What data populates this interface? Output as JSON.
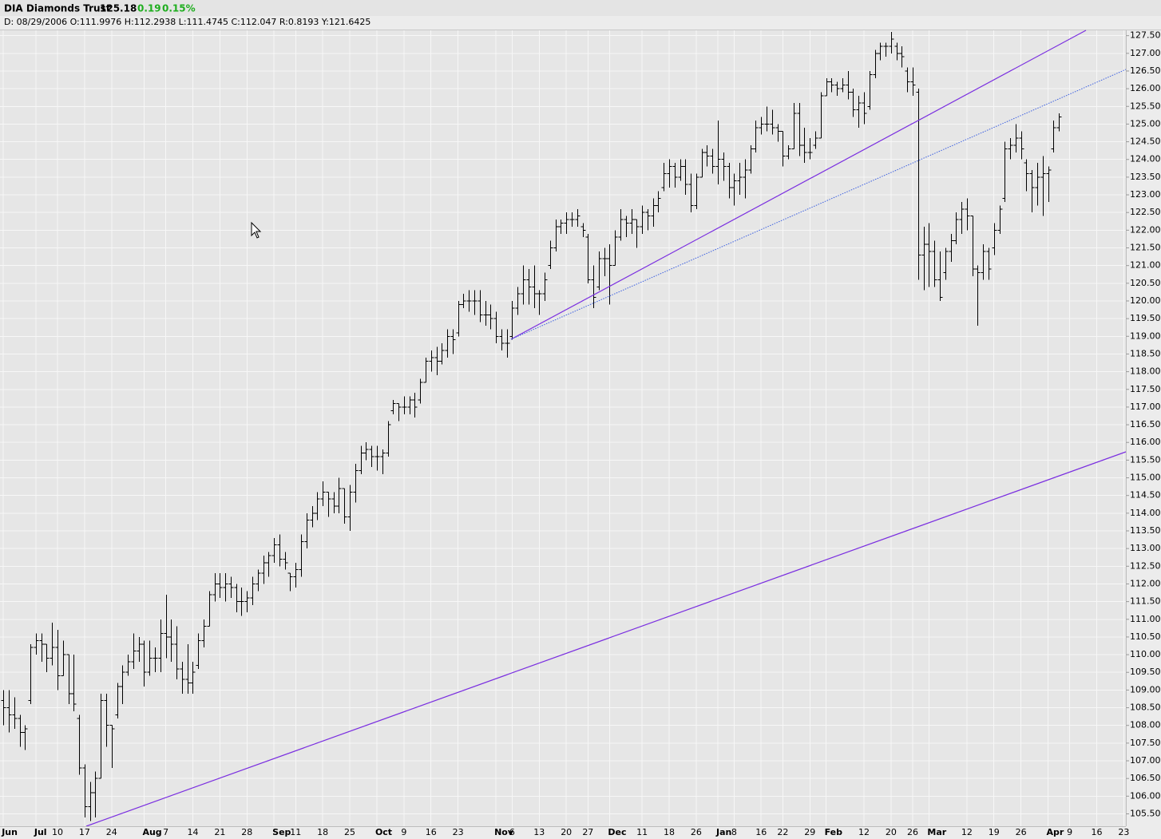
{
  "header": {
    "title": "DIA Diamonds Trust",
    "last": "125.18",
    "change": "0.19",
    "change_pct": "0.15%",
    "info": "D: 08/29/2006 O:111.9976 H:112.2938 L:111.4745 C:112.047 R:0.8193 Y:121.6425"
  },
  "chart_data": {
    "type": "ohlc",
    "bar_color": "#000000",
    "grid": true,
    "categories": [
      "Jun",
      null,
      null,
      null,
      null,
      null,
      "Jul",
      null,
      null,
      null,
      "10",
      null,
      null,
      null,
      null,
      "17",
      null,
      null,
      null,
      null,
      "24",
      null,
      null,
      null,
      null,
      null,
      "Aug",
      null,
      null,
      null,
      "7",
      null,
      null,
      null,
      null,
      "14",
      null,
      null,
      null,
      null,
      "21",
      null,
      null,
      null,
      null,
      "28",
      null,
      null,
      null,
      null,
      "Sep",
      null,
      null,
      null,
      "11",
      null,
      null,
      null,
      null,
      "18",
      null,
      null,
      null,
      null,
      "25",
      null,
      null,
      null,
      null,
      "Oct",
      null,
      null,
      null,
      null,
      "9",
      null,
      null,
      null,
      null,
      "16",
      null,
      null,
      null,
      null,
      "23",
      null,
      null,
      null,
      null,
      null,
      null,
      "Nov",
      null,
      null,
      "6",
      null,
      null,
      null,
      null,
      "13",
      null,
      null,
      null,
      null,
      "20",
      null,
      null,
      null,
      "27",
      null,
      null,
      null,
      "Dec",
      null,
      null,
      null,
      null,
      null,
      "11",
      null,
      null,
      null,
      null,
      "18",
      null,
      null,
      null,
      null,
      "26",
      null,
      null,
      null,
      "Jan",
      null,
      null,
      "8",
      null,
      null,
      null,
      null,
      "16",
      null,
      null,
      null,
      "22",
      null,
      null,
      null,
      null,
      "29",
      null,
      null,
      "Feb",
      null,
      null,
      null,
      null,
      null,
      null,
      "12",
      null,
      null,
      null,
      null,
      "20",
      null,
      null,
      null,
      "26",
      null,
      null,
      "Mar",
      null,
      null,
      null,
      null,
      null,
      null,
      "12",
      null,
      null,
      null,
      null,
      "19",
      null,
      null,
      null,
      null,
      "26",
      null,
      null,
      null,
      null,
      "Apr",
      null,
      null,
      null,
      "9",
      null,
      null,
      null,
      null,
      "16",
      null,
      null,
      null,
      null,
      "23"
    ],
    "open": [
      108.7,
      108.5,
      108.3,
      108.2,
      107.8,
      108.7,
      110.2,
      110.4,
      110.3,
      109.9,
      110.2,
      109.4,
      110.0,
      108.9,
      108.2,
      106.8,
      105.7,
      106.1,
      106.5,
      108.7,
      108.0,
      108.3,
      109.1,
      109.5,
      109.8,
      110.1,
      110.3,
      109.5,
      109.9,
      109.9,
      110.6,
      110.5,
      110.3,
      109.6,
      109.3,
      109.2,
      109.7,
      110.4,
      110.8,
      111.7,
      112.0,
      111.9,
      112.0,
      111.9,
      111.5,
      111.5,
      111.6,
      112.0,
      112.3,
      112.6,
      112.8,
      113.1,
      112.7,
      112.3,
      112.2,
      112.4,
      113.2,
      113.8,
      114.0,
      114.4,
      114.6,
      114.4,
      114.2,
      114.7,
      113.9,
      114.6,
      115.2,
      115.7,
      115.8,
      115.6,
      115.6,
      115.7,
      116.9,
      117.1,
      117.0,
      117.0,
      117.2,
      117.2,
      117.7,
      118.3,
      118.4,
      118.3,
      118.6,
      119.0,
      119.1,
      119.9,
      120.0,
      120.0,
      120.0,
      119.6,
      119.6,
      119.5,
      119.0,
      118.8,
      119.0,
      119.8,
      120.2,
      120.6,
      120.4,
      120.2,
      120.2,
      121.0,
      121.5,
      122.1,
      122.2,
      122.3,
      122.3,
      122.1,
      121.8,
      120.6,
      120.4,
      121.2,
      121.2,
      121.0,
      121.8,
      122.3,
      122.2,
      122.3,
      122.1,
      122.5,
      122.4,
      122.7,
      123.2,
      123.6,
      123.8,
      123.5,
      123.8,
      123.3,
      122.7,
      123.5,
      124.2,
      124.1,
      123.8,
      124.0,
      123.8,
      123.2,
      123.4,
      123.5,
      123.7,
      124.3,
      124.9,
      125.0,
      125.0,
      124.9,
      124.8,
      124.1,
      124.3,
      125.3,
      124.4,
      124.2,
      124.4,
      124.6,
      125.8,
      126.2,
      126.1,
      126.0,
      126.1,
      125.9,
      125.4,
      125.6,
      125.5,
      126.4,
      127.0,
      127.2,
      127.2,
      127.2,
      127.0,
      126.5,
      126.2,
      125.9,
      121.3,
      121.6,
      121.4,
      120.6,
      120.8,
      121.4,
      121.7,
      122.3,
      122.6,
      122.4,
      120.9,
      120.8,
      121.4,
      121.5,
      122.0,
      122.9,
      124.3,
      124.4,
      124.6,
      123.9,
      123.6,
      123.2,
      123.5,
      123.6,
      124.3,
      124.9,
      null,
      null,
      null,
      null,
      null,
      null,
      null,
      null,
      null,
      null,
      null,
      null
    ],
    "high": [
      109.0,
      109.0,
      108.8,
      108.3,
      108.0,
      110.3,
      110.6,
      110.6,
      110.3,
      110.9,
      110.7,
      110.4,
      110.0,
      110.0,
      108.3,
      106.9,
      106.4,
      106.7,
      108.9,
      108.9,
      108.0,
      109.2,
      109.7,
      110.0,
      110.6,
      110.5,
      110.4,
      110.4,
      110.2,
      111.0,
      111.7,
      111.0,
      110.8,
      109.8,
      110.3,
      109.8,
      110.6,
      111.0,
      111.8,
      112.3,
      112.3,
      112.3,
      112.2,
      112.0,
      111.9,
      111.8,
      112.2,
      112.4,
      112.8,
      112.9,
      113.3,
      113.4,
      112.9,
      112.3,
      112.6,
      113.4,
      114.0,
      114.2,
      114.6,
      114.9,
      114.6,
      114.6,
      115.0,
      114.7,
      114.8,
      115.4,
      115.9,
      116.0,
      115.9,
      115.9,
      115.8,
      116.6,
      117.2,
      117.1,
      117.3,
      117.3,
      117.4,
      117.8,
      118.4,
      118.6,
      118.7,
      118.8,
      119.2,
      119.2,
      120.0,
      120.2,
      120.3,
      120.3,
      120.3,
      120.0,
      119.9,
      119.7,
      119.2,
      119.2,
      120.0,
      120.4,
      121.0,
      120.9,
      121.0,
      120.3,
      120.8,
      121.7,
      122.3,
      122.3,
      122.5,
      122.5,
      122.6,
      122.2,
      121.9,
      121.0,
      121.4,
      121.5,
      121.6,
      122.0,
      122.6,
      122.4,
      122.6,
      122.3,
      122.7,
      122.6,
      122.9,
      123.1,
      123.9,
      124.0,
      123.9,
      124.0,
      124.0,
      123.6,
      123.6,
      124.3,
      124.4,
      124.3,
      125.1,
      124.2,
      123.9,
      123.6,
      123.9,
      124.0,
      124.4,
      125.1,
      125.2,
      125.5,
      125.4,
      125.0,
      124.8,
      124.4,
      125.6,
      125.6,
      124.9,
      124.6,
      124.8,
      125.9,
      126.3,
      126.3,
      126.2,
      126.3,
      126.5,
      126.0,
      125.8,
      125.9,
      126.5,
      127.1,
      127.3,
      127.3,
      127.6,
      127.3,
      127.2,
      126.6,
      126.6,
      126.0,
      122.1,
      122.2,
      121.7,
      121.4,
      121.5,
      121.9,
      122.5,
      122.8,
      122.9,
      122.4,
      121.0,
      121.6,
      121.5,
      122.2,
      122.7,
      124.5,
      124.6,
      125.0,
      124.8,
      124.0,
      123.7,
      123.9,
      124.1,
      123.8,
      125.1,
      125.3,
      null,
      null,
      null,
      null,
      null,
      null,
      null,
      null,
      null,
      null,
      null,
      null
    ],
    "low": [
      108.0,
      107.8,
      107.9,
      107.4,
      107.3,
      108.6,
      110.0,
      109.8,
      109.5,
      109.7,
      109.0,
      109.4,
      108.6,
      108.4,
      106.6,
      105.4,
      105.3,
      105.4,
      106.5,
      107.4,
      106.8,
      108.2,
      108.6,
      109.4,
      109.6,
      109.8,
      109.1,
      109.4,
      109.5,
      109.5,
      109.9,
      109.8,
      109.3,
      108.9,
      108.9,
      108.9,
      109.6,
      110.2,
      110.8,
      111.5,
      111.6,
      111.5,
      111.6,
      111.2,
      111.1,
      111.2,
      111.4,
      111.8,
      112.0,
      112.2,
      112.6,
      112.5,
      112.4,
      111.8,
      111.9,
      112.2,
      113.0,
      113.6,
      113.8,
      114.2,
      113.9,
      114.0,
      114.0,
      113.7,
      113.5,
      114.3,
      115.1,
      115.5,
      115.3,
      115.2,
      115.1,
      115.6,
      116.8,
      116.6,
      116.8,
      116.8,
      116.7,
      117.1,
      117.7,
      118.0,
      117.9,
      118.2,
      118.4,
      118.5,
      119.0,
      119.8,
      119.7,
      119.6,
      119.4,
      119.3,
      119.2,
      118.8,
      118.6,
      118.4,
      118.9,
      119.6,
      119.9,
      119.9,
      119.8,
      119.6,
      120.0,
      120.9,
      121.4,
      121.9,
      121.9,
      122.1,
      122.1,
      121.8,
      120.5,
      119.8,
      120.3,
      120.7,
      119.9,
      121.0,
      121.7,
      121.8,
      121.9,
      121.5,
      121.9,
      122.0,
      122.1,
      122.5,
      123.1,
      123.2,
      123.2,
      123.4,
      123.0,
      122.5,
      122.6,
      123.5,
      123.8,
      123.6,
      123.3,
      123.4,
      122.9,
      122.7,
      123.0,
      122.9,
      123.6,
      124.2,
      124.7,
      124.8,
      124.7,
      124.5,
      123.8,
      124.0,
      124.3,
      124.1,
      123.9,
      124.0,
      124.3,
      124.6,
      125.8,
      125.9,
      125.8,
      125.9,
      125.7,
      125.2,
      124.9,
      125.0,
      125.4,
      126.3,
      126.8,
      126.9,
      127.0,
      126.8,
      126.6,
      125.9,
      125.8,
      120.6,
      120.3,
      120.4,
      120.4,
      120.0,
      120.6,
      121.1,
      121.6,
      121.9,
      122.0,
      120.7,
      119.3,
      120.6,
      120.6,
      121.3,
      121.9,
      122.8,
      124.0,
      124.2,
      124.0,
      123.1,
      122.5,
      122.7,
      122.4,
      122.8,
      124.2,
      124.8,
      null,
      null,
      null,
      null,
      null,
      null,
      null,
      null,
      null,
      null,
      null,
      null
    ],
    "close": [
      108.5,
      108.3,
      108.2,
      107.8,
      107.9,
      110.2,
      110.4,
      110.3,
      109.9,
      110.2,
      109.4,
      110.0,
      108.9,
      108.6,
      106.8,
      105.7,
      106.1,
      106.5,
      108.7,
      108.0,
      107.9,
      109.1,
      109.5,
      109.8,
      110.1,
      110.3,
      109.5,
      109.9,
      109.9,
      110.6,
      110.5,
      110.3,
      109.6,
      109.3,
      109.2,
      109.5,
      110.4,
      110.8,
      111.7,
      112.0,
      111.9,
      112.0,
      111.9,
      111.5,
      111.5,
      111.6,
      112.0,
      112.3,
      112.6,
      112.8,
      113.1,
      112.7,
      112.6,
      112.2,
      112.4,
      113.2,
      113.8,
      114.0,
      114.4,
      114.6,
      114.4,
      114.2,
      114.7,
      113.9,
      114.6,
      115.2,
      115.7,
      115.8,
      115.6,
      115.6,
      115.7,
      116.5,
      117.1,
      117.0,
      117.0,
      117.2,
      117.0,
      117.7,
      118.3,
      118.4,
      118.3,
      118.6,
      119.0,
      118.9,
      119.9,
      120.0,
      120.0,
      120.0,
      119.6,
      119.6,
      119.5,
      119.0,
      118.8,
      118.8,
      119.8,
      120.2,
      120.6,
      120.4,
      120.2,
      120.2,
      120.6,
      121.5,
      122.1,
      122.2,
      122.3,
      122.3,
      122.4,
      122.0,
      120.6,
      120.1,
      121.2,
      121.2,
      121.0,
      121.8,
      122.3,
      122.2,
      122.3,
      122.1,
      122.5,
      122.4,
      122.7,
      122.9,
      123.6,
      123.8,
      123.5,
      123.8,
      123.3,
      122.7,
      123.5,
      124.2,
      124.1,
      123.8,
      124.0,
      123.8,
      123.2,
      123.4,
      123.5,
      123.7,
      124.3,
      124.9,
      125.0,
      125.0,
      124.9,
      124.8,
      124.1,
      124.3,
      125.3,
      124.4,
      124.2,
      124.2,
      124.6,
      125.8,
      126.2,
      126.1,
      126.0,
      126.1,
      125.9,
      125.4,
      125.6,
      125.3,
      126.4,
      127.0,
      127.2,
      127.2,
      127.4,
      127.0,
      126.9,
      126.2,
      126.1,
      121.3,
      121.6,
      121.4,
      120.6,
      120.1,
      121.4,
      121.7,
      122.3,
      122.6,
      122.4,
      120.9,
      120.8,
      121.4,
      120.9,
      122.0,
      122.6,
      124.3,
      124.4,
      124.6,
      124.3,
      123.6,
      123.2,
      123.5,
      123.6,
      123.7,
      124.9,
      125.2,
      null,
      null,
      null,
      null,
      null,
      null,
      null,
      null,
      null,
      null,
      null,
      null
    ],
    "ylim": [
      105.15,
      127.65
    ],
    "yticks": [
      {
        "value": 105.5,
        "label": "105.50"
      },
      {
        "value": 106,
        "label": "106.00"
      },
      {
        "value": 106.5,
        "label": "106.50"
      },
      {
        "value": 107,
        "label": "107.00"
      },
      {
        "value": 107.5,
        "label": "107.50"
      },
      {
        "value": 108,
        "label": "108.00"
      },
      {
        "value": 108.5,
        "label": "108.50"
      },
      {
        "value": 109,
        "label": "109.00"
      },
      {
        "value": 109.5,
        "label": "109.50"
      },
      {
        "value": 110,
        "label": "110.00"
      },
      {
        "value": 110.5,
        "label": "110.50"
      },
      {
        "value": 111,
        "label": "111.00"
      },
      {
        "value": 111.5,
        "label": "111.50"
      },
      {
        "value": 112,
        "label": "112.00"
      },
      {
        "value": 112.5,
        "label": "112.50"
      },
      {
        "value": 113,
        "label": "113.00"
      },
      {
        "value": 113.5,
        "label": "113.50"
      },
      {
        "value": 114,
        "label": "114.00"
      },
      {
        "value": 114.5,
        "label": "114.50"
      },
      {
        "value": 115,
        "label": "115.00"
      },
      {
        "value": 115.5,
        "label": "115.50"
      },
      {
        "value": 116,
        "label": "116.00"
      },
      {
        "value": 116.5,
        "label": "116.50"
      },
      {
        "value": 117,
        "label": "117.00"
      },
      {
        "value": 117.5,
        "label": "117.50"
      },
      {
        "value": 118,
        "label": "118.00"
      },
      {
        "value": 118.5,
        "label": "118.50"
      },
      {
        "value": 119,
        "label": "119.00"
      },
      {
        "value": 119.5,
        "label": "119.50"
      },
      {
        "value": 120,
        "label": "120.00"
      },
      {
        "value": 120.5,
        "label": "120.50"
      },
      {
        "value": 121,
        "label": "121.00"
      },
      {
        "value": 121.5,
        "label": "121.50"
      },
      {
        "value": 122,
        "label": "122.00"
      },
      {
        "value": 122.5,
        "label": "122.50"
      },
      {
        "value": 123,
        "label": "123.00"
      },
      {
        "value": 123.5,
        "label": "123.50"
      },
      {
        "value": 124,
        "label": "124.00"
      },
      {
        "value": 124.5,
        "label": "124.50"
      },
      {
        "value": 125,
        "label": "125.00"
      },
      {
        "value": 125.5,
        "label": "125.50"
      },
      {
        "value": 126,
        "label": "126.00"
      },
      {
        "value": 126.5,
        "label": "126.50"
      },
      {
        "value": 127,
        "label": "127.00"
      },
      {
        "value": 127.5,
        "label": "127.50"
      }
    ]
  }
}
